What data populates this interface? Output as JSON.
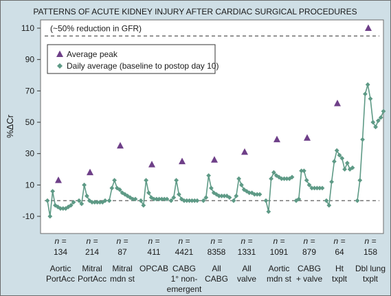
{
  "chart_data": {
    "type": "line",
    "title": "PATTERNS OF ACUTE KIDNEY INJURY AFTER CARDIAC SURGICAL PROCEDURES",
    "ylabel": "%ΔCr",
    "ylim": [
      -10,
      115
    ],
    "yticks": [
      -10,
      10,
      30,
      50,
      70,
      90,
      110
    ],
    "reference_lines": [
      {
        "value": 105,
        "label": "(~50% reduction in GFR)",
        "style": "dashed"
      },
      {
        "value": 0,
        "label": "",
        "style": "dashed"
      }
    ],
    "legend": {
      "placement": "top-left",
      "entries": [
        {
          "name": "Average peak",
          "marker": "triangle",
          "color": "#6e3f88"
        },
        {
          "name": "Daily average (baseline to postop day 10)",
          "marker": "diamond",
          "color": "#5e9a86"
        }
      ]
    },
    "n_prefix": "n =",
    "groups": [
      {
        "label": [
          "Aortic",
          "PortAcc"
        ],
        "n": "134",
        "peak": 13,
        "daily": [
          0,
          -10,
          6,
          -3,
          -4,
          -5,
          -5,
          -5,
          -4,
          -3,
          -1
        ]
      },
      {
        "label": [
          "Mitral",
          "PortAcc"
        ],
        "n": "214",
        "peak": 18,
        "daily": [
          0,
          -2,
          10,
          3,
          0,
          -1,
          -1,
          -1,
          -1,
          -1,
          0
        ]
      },
      {
        "label": [
          "Mitral",
          "mdn st"
        ],
        "n": "87",
        "peak": 35,
        "daily": [
          0,
          8,
          13,
          8,
          7,
          5,
          4,
          3,
          2,
          1,
          1
        ]
      },
      {
        "label": [
          "OPCAB"
        ],
        "n": "411",
        "peak": 23,
        "daily": [
          0,
          -3,
          13,
          5,
          2,
          1,
          1,
          1,
          1,
          1,
          1
        ]
      },
      {
        "label": [
          "CABG",
          "1° non-",
          "emergent"
        ],
        "n": "4421",
        "peak": 25,
        "daily": [
          0,
          2,
          13,
          4,
          1,
          0,
          0,
          0,
          0,
          0,
          0
        ]
      },
      {
        "label": [
          "All",
          "CABG"
        ],
        "n": "8358",
        "peak": 26,
        "daily": [
          0,
          2,
          16,
          8,
          5,
          4,
          3,
          3,
          3,
          3,
          2
        ]
      },
      {
        "label": [
          "All",
          "valve"
        ],
        "n": "1331",
        "peak": 31,
        "daily": [
          0,
          3,
          14,
          10,
          7,
          6,
          5,
          5,
          4,
          4,
          4
        ]
      },
      {
        "label": [
          "Aortic",
          "mdn st"
        ],
        "n": "1091",
        "peak": 39,
        "daily": [
          0,
          -7,
          14,
          18,
          16,
          15,
          14,
          14,
          14,
          14,
          15
        ]
      },
      {
        "label": [
          "CABG",
          "+ valve"
        ],
        "n": "879",
        "peak": 40,
        "daily": [
          0,
          1,
          19,
          19,
          13,
          10,
          8,
          8,
          8,
          8,
          8
        ]
      },
      {
        "label": [
          "Ht",
          "txplt"
        ],
        "n": "64",
        "peak": 62,
        "daily": [
          0,
          -3,
          12,
          25,
          32,
          29,
          27,
          20,
          24,
          20,
          21
        ]
      },
      {
        "label": [
          "Dbl lung",
          "txplt"
        ],
        "n": "158",
        "peak": 110,
        "daily": [
          0,
          13,
          39,
          68,
          74,
          65,
          50,
          47,
          51,
          53,
          57
        ]
      }
    ],
    "grid": false
  }
}
